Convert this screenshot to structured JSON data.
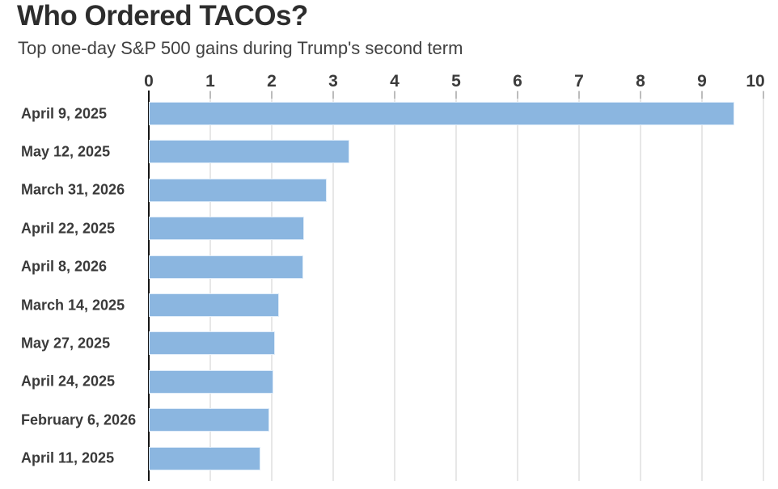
{
  "header": {
    "title": "Who Ordered TACOs?",
    "subtitle": "Top one-day S&P 500 gains during Trump's second term"
  },
  "chart_data": {
    "type": "bar",
    "orientation": "horizontal",
    "title": "Who Ordered TACOs?",
    "subtitle": "Top one-day S&P 500 gains during Trump's second term",
    "xlabel": "",
    "ylabel": "",
    "xlim": [
      0,
      10
    ],
    "x_ticks": [
      0,
      1,
      2,
      3,
      4,
      5,
      6,
      7,
      8,
      9,
      10
    ],
    "grid": true,
    "legend": false,
    "categories": [
      "April 9, 2025",
      "May 12, 2025",
      "March 31, 2026",
      "April 22, 2025",
      "April 8, 2026",
      "March 14, 2025",
      "May 27, 2025",
      "April 24, 2025",
      "February 6, 2026",
      "April 11, 2025"
    ],
    "values": [
      9.52,
      3.26,
      2.9,
      2.52,
      2.51,
      2.12,
      2.05,
      2.03,
      1.96,
      1.81
    ],
    "colors": {
      "bar": "#8bb6e0",
      "bar_border": "#dfecf9",
      "gridline": "#e7e7e7",
      "tick_mark": "#bcbcbc",
      "axis_line": "#151515",
      "tick_label": "#3b3b3b",
      "category_label": "#3a3a3a",
      "title": "#2d2d2d",
      "subtitle": "#414141",
      "background": "#ffffff"
    }
  }
}
